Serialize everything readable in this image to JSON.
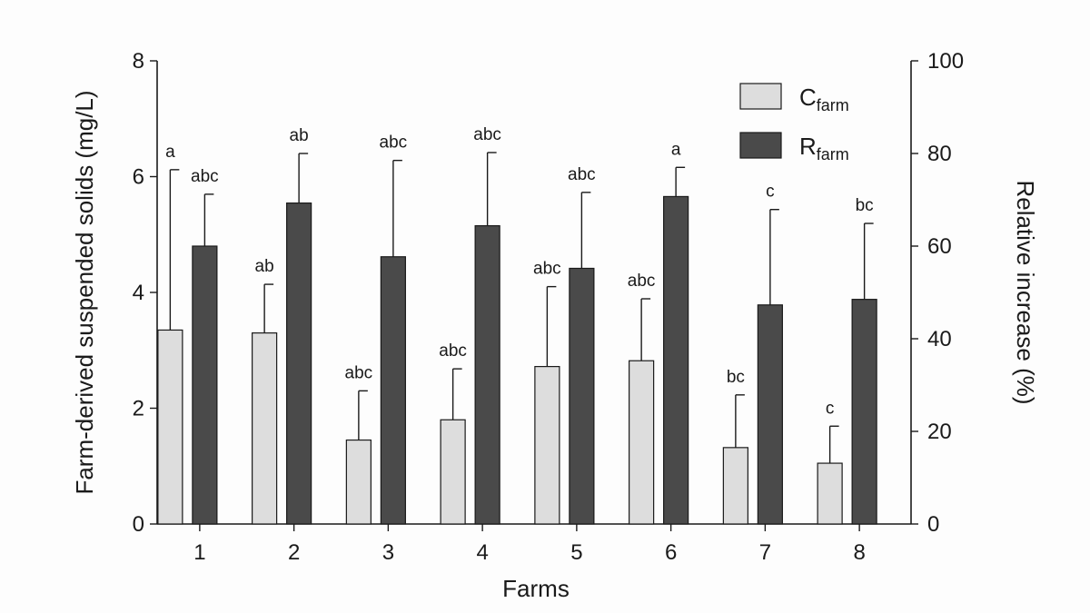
{
  "chart_data": {
    "type": "bar",
    "title": "",
    "xlabel": "Farms",
    "ylabel": "Farm-derived suspended solids (mg/L)",
    "ylabel_right": "Relative increase (%)",
    "categories": [
      "1",
      "2",
      "3",
      "4",
      "5",
      "6",
      "7",
      "8"
    ],
    "ylim": [
      0,
      8
    ],
    "ylim_right": [
      0,
      100
    ],
    "yticks": [
      "0",
      "2",
      "4",
      "6",
      "8"
    ],
    "yticks_right": [
      "0",
      "20",
      "40",
      "60",
      "80",
      "100"
    ],
    "legend_position": "top-right",
    "series": [
      {
        "name": "C",
        "name_subscript": "farm",
        "axis": "left",
        "color": "#dddddd",
        "values": [
          3.35,
          3.3,
          1.45,
          1.8,
          2.72,
          2.82,
          1.32,
          1.05
        ],
        "error": [
          2.77,
          0.84,
          0.85,
          0.88,
          1.38,
          1.07,
          0.91,
          0.64
        ],
        "letters": [
          "a",
          "ab",
          "abc",
          "abc",
          "abc",
          "abc",
          "bc",
          "c"
        ]
      },
      {
        "name": "R",
        "name_subscript": "farm",
        "axis": "right",
        "color": "#4a4a4a",
        "values": [
          60,
          69.3,
          57.7,
          64.4,
          55.2,
          70.7,
          47.3,
          48.5
        ],
        "error": [
          11.2,
          10.7,
          20.8,
          15.8,
          16.4,
          6.3,
          20.6,
          16.4
        ],
        "letters": [
          "abc",
          "ab",
          "abc",
          "abc",
          "abc",
          "a",
          "c",
          "bc"
        ]
      }
    ]
  }
}
